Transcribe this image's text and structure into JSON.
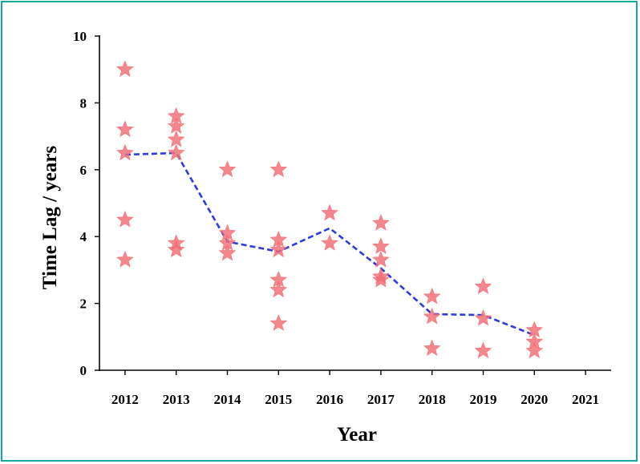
{
  "chart_data": {
    "type": "scatter",
    "xlabel": "Year",
    "ylabel": "Time Lag / years",
    "xlim": [
      2011.5,
      2021.5
    ],
    "ylim": [
      0,
      10
    ],
    "x_ticks": [
      "2012",
      "2013",
      "2014",
      "2015",
      "2016",
      "2017",
      "2018",
      "2019",
      "2020",
      "2021"
    ],
    "y_ticks": [
      "0",
      "2",
      "4",
      "6",
      "8",
      "10"
    ],
    "grid": false,
    "legend": "none",
    "series": [
      {
        "kind": "scatter",
        "marker": "star",
        "color": "#f26d74",
        "points": [
          {
            "x": 2012,
            "y": 9.0
          },
          {
            "x": 2012,
            "y": 7.2
          },
          {
            "x": 2012,
            "y": 6.5
          },
          {
            "x": 2012,
            "y": 4.5
          },
          {
            "x": 2012,
            "y": 3.3
          },
          {
            "x": 2013,
            "y": 7.6
          },
          {
            "x": 2013,
            "y": 7.3
          },
          {
            "x": 2013,
            "y": 6.9
          },
          {
            "x": 2013,
            "y": 6.5
          },
          {
            "x": 2013,
            "y": 3.8
          },
          {
            "x": 2013,
            "y": 3.6
          },
          {
            "x": 2014,
            "y": 6.0
          },
          {
            "x": 2014,
            "y": 4.1
          },
          {
            "x": 2014,
            "y": 3.8
          },
          {
            "x": 2014,
            "y": 3.5
          },
          {
            "x": 2015,
            "y": 6.0
          },
          {
            "x": 2015,
            "y": 3.9
          },
          {
            "x": 2015,
            "y": 3.6
          },
          {
            "x": 2015,
            "y": 2.7
          },
          {
            "x": 2015,
            "y": 2.4
          },
          {
            "x": 2015,
            "y": 1.4
          },
          {
            "x": 2016,
            "y": 4.7
          },
          {
            "x": 2016,
            "y": 3.8
          },
          {
            "x": 2017,
            "y": 4.4
          },
          {
            "x": 2017,
            "y": 3.7
          },
          {
            "x": 2017,
            "y": 3.3
          },
          {
            "x": 2017,
            "y": 2.8
          },
          {
            "x": 2017,
            "y": 2.7
          },
          {
            "x": 2018,
            "y": 2.2
          },
          {
            "x": 2018,
            "y": 1.6
          },
          {
            "x": 2018,
            "y": 0.65
          },
          {
            "x": 2019,
            "y": 2.5
          },
          {
            "x": 2019,
            "y": 1.55
          },
          {
            "x": 2019,
            "y": 0.58
          },
          {
            "x": 2020,
            "y": 1.2
          },
          {
            "x": 2020,
            "y": 0.85
          },
          {
            "x": 2020,
            "y": 0.58
          }
        ]
      },
      {
        "kind": "line",
        "style": "dashed",
        "color": "#2b3bdc",
        "points": [
          {
            "x": 2012,
            "y": 6.45
          },
          {
            "x": 2013,
            "y": 6.5
          },
          {
            "x": 2014,
            "y": 3.85
          },
          {
            "x": 2015,
            "y": 3.55
          },
          {
            "x": 2016,
            "y": 4.25
          },
          {
            "x": 2017,
            "y": 3.05
          },
          {
            "x": 2018,
            "y": 1.68
          },
          {
            "x": 2019,
            "y": 1.65
          },
          {
            "x": 2020,
            "y": 1.05
          }
        ]
      }
    ]
  }
}
